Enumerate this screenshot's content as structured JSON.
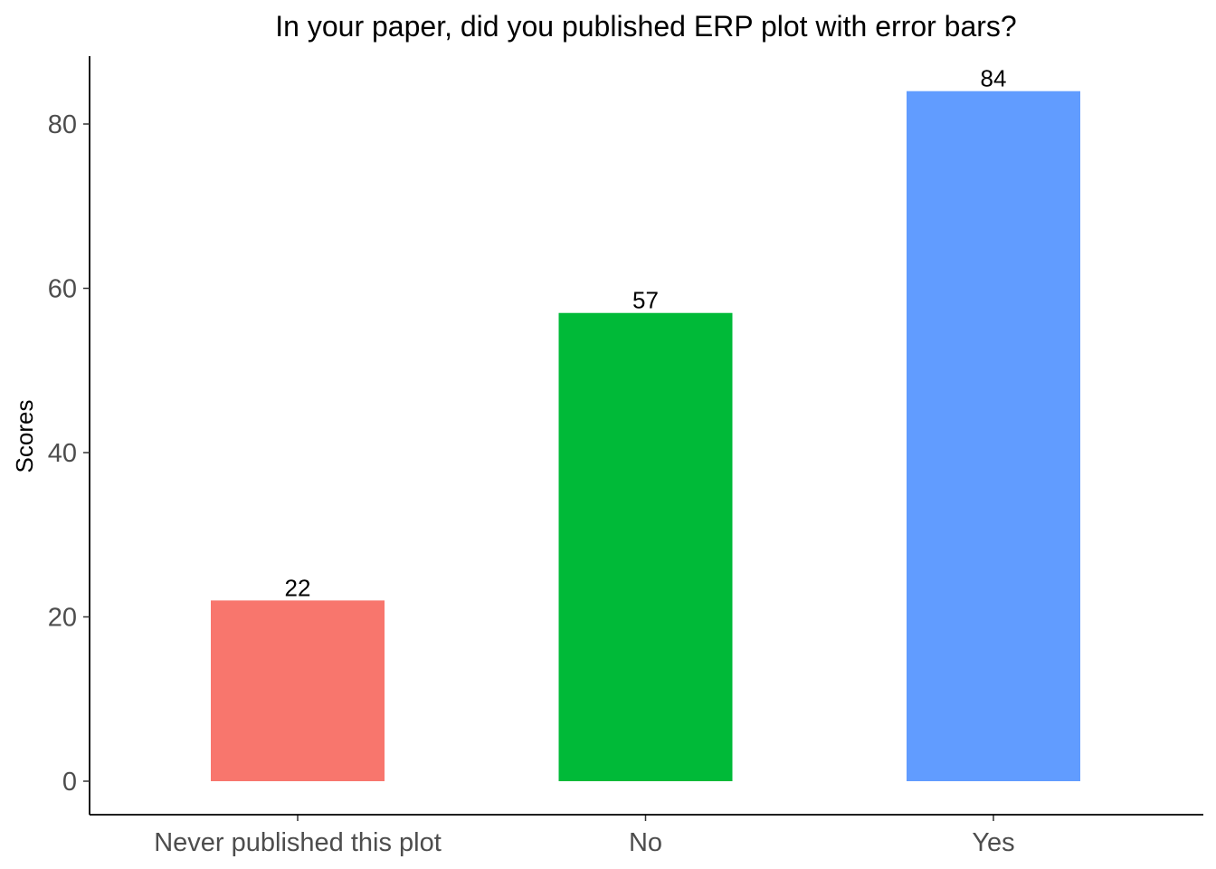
{
  "chart_data": {
    "type": "bar",
    "title": "In your paper, did you published ERP plot with error bars?",
    "xlabel": "",
    "ylabel": "Scores",
    "categories": [
      "Never published this plot",
      "No",
      "Yes"
    ],
    "values": [
      22,
      57,
      84
    ],
    "data_labels": [
      "22",
      "57",
      "84"
    ],
    "colors": [
      "#F8766D",
      "#00BA38",
      "#619CFF"
    ],
    "ylim": [
      0,
      88
    ],
    "yticks": [
      0,
      20,
      40,
      60,
      80
    ],
    "grid": false,
    "legend": "none"
  }
}
